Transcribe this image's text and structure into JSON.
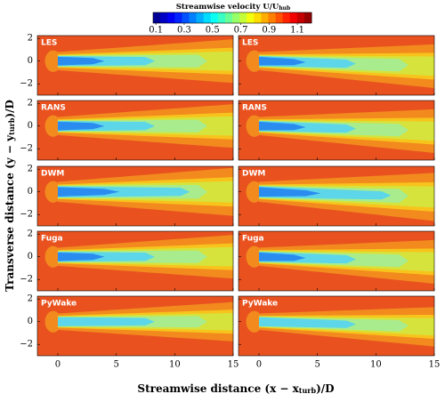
{
  "chart_data": {
    "type": "contour",
    "title": [
      "Streamwise velocity U/U",
      "hub"
    ],
    "xlabel": [
      "Streamwise distance (x − x",
      "turb",
      ")/D"
    ],
    "ylabel": [
      "Transverse distance (y − y",
      "turb",
      ")/D"
    ],
    "rows": [
      "LES",
      "RANS",
      "DWM",
      "Fuga",
      "PyWake"
    ],
    "xlim": [
      -1.75,
      15
    ],
    "ylim": [
      -3,
      2.25
    ],
    "xticks": [
      0,
      5,
      10,
      15
    ],
    "yticks": [
      {
        "value": -2,
        "label": "−2"
      },
      0,
      2
    ],
    "colormap": "jet",
    "colorbar": {
      "lim": [
        0.08,
        1.2
      ],
      "ticks": [
        0.1,
        0.3,
        0.5,
        0.7,
        0.9,
        1.1
      ]
    }
  }
}
